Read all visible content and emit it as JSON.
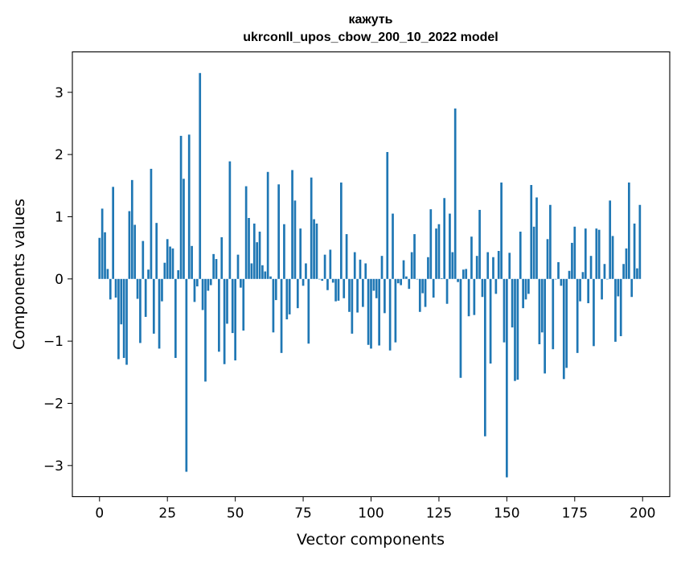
{
  "chart_data": {
    "type": "bar",
    "title": "кажуть",
    "subtitle": "ukrconll_upos_cbow_200_10_2022 model",
    "xlabel": "Vector components",
    "ylabel": "Components values",
    "xlim": [
      -10,
      210
    ],
    "ylim": [
      -3.5,
      3.65
    ],
    "xticks": [
      0,
      25,
      50,
      75,
      100,
      125,
      150,
      175,
      200
    ],
    "yticks": [
      -3,
      -2,
      -1,
      0,
      1,
      2,
      3
    ],
    "xtick_labels": [
      "0",
      "25",
      "50",
      "75",
      "100",
      "125",
      "150",
      "175",
      "200"
    ],
    "ytick_labels": [
      "−3",
      "−2",
      "−1",
      "0",
      "1",
      "2",
      "3"
    ],
    "bar_color": "#1f77b4",
    "grid": false,
    "values": [
      0.66,
      1.13,
      0.75,
      0.16,
      -0.33,
      1.48,
      -0.3,
      -1.29,
      -0.73,
      -1.27,
      -1.38,
      1.09,
      1.59,
      0.87,
      -0.32,
      -1.03,
      0.61,
      -0.61,
      0.15,
      1.77,
      -0.88,
      0.9,
      -1.12,
      -0.36,
      0.26,
      0.64,
      0.52,
      0.49,
      -1.27,
      0.14,
      2.3,
      1.61,
      -3.1,
      2.32,
      0.53,
      -0.37,
      -0.12,
      3.31,
      -0.5,
      -1.65,
      -0.19,
      -0.1,
      0.4,
      0.32,
      -1.17,
      0.67,
      -1.37,
      -0.72,
      1.89,
      -0.87,
      -1.31,
      0.39,
      -0.14,
      -0.83,
      1.49,
      0.98,
      0.25,
      0.89,
      0.59,
      0.76,
      0.22,
      0.12,
      1.72,
      0.04,
      -0.86,
      -0.34,
      1.52,
      -1.19,
      0.88,
      -0.65,
      -0.57,
      1.75,
      1.26,
      -0.47,
      0.81,
      -0.11,
      0.25,
      -1.04,
      1.63,
      0.96,
      0.89,
      0.0,
      -0.03,
      0.39,
      -0.18,
      0.47,
      -0.06,
      -0.36,
      -0.35,
      1.55,
      -0.31,
      0.72,
      -0.53,
      -0.88,
      0.43,
      -0.54,
      0.31,
      -0.45,
      0.25,
      -1.06,
      -1.12,
      -0.19,
      -0.31,
      -1.07,
      0.37,
      -0.55,
      2.04,
      -1.15,
      1.05,
      -1.02,
      -0.07,
      -0.1,
      0.3,
      0.04,
      -0.16,
      0.43,
      0.72,
      0.0,
      -0.53,
      -0.23,
      -0.45,
      0.35,
      1.12,
      -0.3,
      0.81,
      0.88,
      0.01,
      1.3,
      -0.4,
      1.05,
      0.43,
      2.74,
      -0.05,
      -1.59,
      0.15,
      0.16,
      -0.6,
      0.68,
      -0.58,
      0.37,
      1.11,
      -0.29,
      -2.53,
      0.43,
      -1.36,
      0.35,
      -0.24,
      0.45,
      1.55,
      -1.02,
      -3.19,
      0.42,
      -0.78,
      -1.64,
      -1.62,
      0.76,
      -0.47,
      -0.33,
      -0.24,
      1.51,
      0.84,
      1.31,
      -1.05,
      -0.86,
      -1.52,
      0.64,
      1.19,
      -1.13,
      0.0,
      0.27,
      -0.11,
      -1.61,
      -1.43,
      0.13,
      0.58,
      0.84,
      -1.19,
      -0.36,
      0.11,
      0.81,
      -0.39,
      0.37,
      -1.08,
      0.81,
      0.79,
      -0.33,
      0.24,
      0.0,
      1.26,
      0.69,
      -1.01,
      -0.28,
      -0.92,
      0.24,
      0.49,
      1.55,
      -0.29,
      0.89,
      0.17,
      1.19
    ]
  }
}
